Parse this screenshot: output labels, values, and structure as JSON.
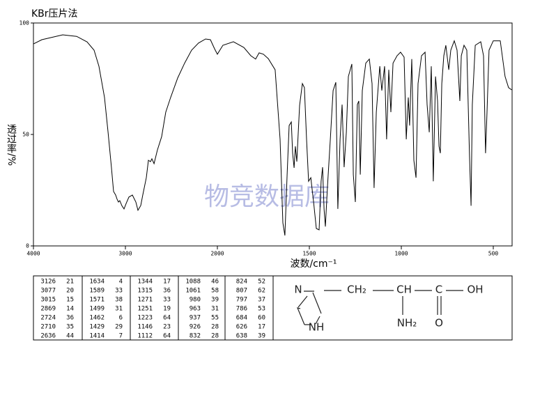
{
  "chart_data": {
    "type": "line",
    "title": "KBr压片法",
    "ylabel": "透过率/%",
    "xlabel": "波数/cm⁻¹",
    "watermark": "物竞数据库",
    "color": "#000000",
    "xlim": [
      4000,
      400
    ],
    "ylim": [
      0,
      100
    ],
    "xticks": [
      4000,
      3000,
      2000,
      1500,
      1000,
      500
    ],
    "yticks": [
      0,
      50,
      100
    ],
    "x": [
      4000,
      3909,
      3682,
      3530,
      3417,
      3341,
      3288,
      3227,
      3189,
      3152,
      3129,
      3106,
      3091,
      3076,
      3061,
      3038,
      3015,
      2992,
      2962,
      2924,
      2886,
      2864,
      2833,
      2811,
      2773,
      2750,
      2727,
      2712,
      2689,
      2652,
      2606,
      2561,
      2508,
      2432,
      2356,
      2280,
      2205,
      2129,
      2076,
      2030,
      2000,
      1970,
      1913,
      1856,
      1818,
      1792,
      1773,
      1750,
      1723,
      1686,
      1659,
      1644,
      1633,
      1621,
      1610,
      1598,
      1591,
      1583,
      1576,
      1568,
      1553,
      1538,
      1527,
      1515,
      1504,
      1492,
      1477,
      1462,
      1447,
      1436,
      1428,
      1420,
      1413,
      1402,
      1386,
      1371,
      1356,
      1345,
      1333,
      1322,
      1311,
      1299,
      1288,
      1269,
      1261,
      1250,
      1239,
      1231,
      1223,
      1212,
      1193,
      1174,
      1159,
      1148,
      1136,
      1117,
      1106,
      1091,
      1080,
      1068,
      1057,
      1045,
      1023,
      1004,
      985,
      973,
      962,
      955,
      943,
      932,
      920,
      909,
      890,
      871,
      860,
      848,
      837,
      826,
      814,
      803,
      795,
      788,
      780,
      769,
      758,
      742,
      731,
      712,
      697,
      682,
      674,
      659,
      644,
      629,
      621,
      614,
      598,
      568,
      553,
      542,
      534,
      523,
      500,
      462,
      436,
      417,
      400
    ],
    "values": [
      90.6,
      92.5,
      94.7,
      94,
      91.5,
      87.8,
      80.6,
      66.6,
      51,
      35.3,
      24.4,
      22.8,
      21,
      19.7,
      20.3,
      18,
      16.6,
      19.1,
      21.9,
      22.8,
      19.7,
      16,
      18.1,
      22.8,
      30.6,
      38.4,
      37.8,
      39.1,
      36.9,
      43,
      49,
      60,
      66.6,
      75.3,
      82,
      87.8,
      91,
      92.8,
      92.5,
      88.4,
      86,
      90,
      91.6,
      89,
      85.3,
      83.8,
      86.6,
      86,
      84,
      79,
      47.8,
      10.3,
      4.7,
      32,
      54,
      55.6,
      41.6,
      35,
      44.7,
      37.8,
      63,
      72.8,
      71,
      47.8,
      29,
      30.6,
      19.7,
      7.8,
      7.2,
      29,
      35.3,
      16.6,
      8.7,
      26,
      47.8,
      69.7,
      73.4,
      16.6,
      47.8,
      63.4,
      35.3,
      51,
      76,
      81.6,
      32,
      19.7,
      63.4,
      65,
      32,
      69.7,
      82,
      83.8,
      72.8,
      26,
      60,
      80.6,
      69.7,
      80.6,
      47.8,
      79,
      60,
      82,
      85.3,
      86.9,
      84.7,
      47.8,
      66.6,
      54,
      83.8,
      38.4,
      30.6,
      72.8,
      85.3,
      86.9,
      63.4,
      51,
      80.6,
      29,
      76,
      65,
      44.7,
      41.6,
      72.8,
      85.3,
      90,
      79,
      87.8,
      92,
      87.8,
      65,
      85.3,
      90,
      87.8,
      40,
      18,
      63.4,
      90,
      91.6,
      85.3,
      41.6,
      60,
      87.8,
      92,
      92,
      76,
      71,
      70
    ]
  },
  "table": {
    "columns": [
      [
        [
          3126,
          21
        ],
        [
          3077,
          20
        ],
        [
          3015,
          15
        ],
        [
          2869,
          14
        ],
        [
          2724,
          36
        ],
        [
          2710,
          35
        ],
        [
          2636,
          44
        ]
      ],
      [
        [
          1634,
          4
        ],
        [
          1589,
          33
        ],
        [
          1571,
          38
        ],
        [
          1499,
          31
        ],
        [
          1462,
          6
        ],
        [
          1429,
          29
        ],
        [
          1414,
          7
        ]
      ],
      [
        [
          1344,
          17
        ],
        [
          1315,
          36
        ],
        [
          1271,
          33
        ],
        [
          1251,
          19
        ],
        [
          1223,
          64
        ],
        [
          1146,
          23
        ],
        [
          1112,
          64
        ]
      ],
      [
        [
          1088,
          46
        ],
        [
          1061,
          58
        ],
        [
          980,
          39
        ],
        [
          963,
          31
        ],
        [
          937,
          55
        ],
        [
          926,
          28
        ],
        [
          832,
          28
        ]
      ],
      [
        [
          824,
          52
        ],
        [
          807,
          62
        ],
        [
          797,
          37
        ],
        [
          786,
          53
        ],
        [
          684,
          60
        ],
        [
          626,
          17
        ],
        [
          638,
          39
        ]
      ]
    ]
  },
  "structure": {
    "labels": [
      "N",
      "NH",
      "CH₂",
      "CH",
      "C",
      "OH",
      "NH₂",
      "O"
    ]
  }
}
